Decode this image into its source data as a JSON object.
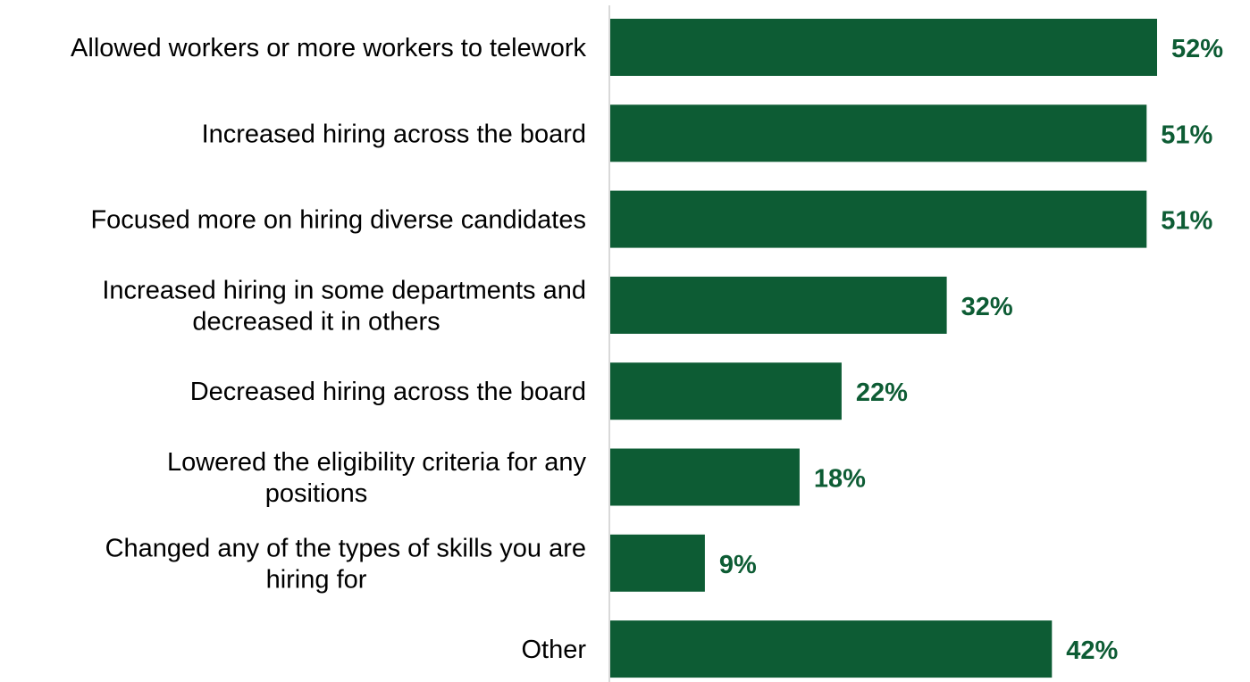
{
  "chart_data": {
    "type": "bar",
    "orientation": "horizontal",
    "title": "",
    "xlabel": "",
    "ylabel": "",
    "categories": [
      "Allowed workers or more workers to telework",
      "Increased hiring across the board",
      "Focused more on hiring diverse candidates",
      "Increased hiring in some departments and decreased it in others",
      "Decreased hiring across the board",
      "Lowered the eligibility criteria for any positions",
      "Changed any of the types of skills you are hiring for",
      "Other"
    ],
    "category_lines": [
      [
        "Allowed workers or more workers to telework"
      ],
      [
        "Increased hiring across the board"
      ],
      [
        "Focused more on hiring diverse candidates"
      ],
      [
        "Increased hiring in some departments and",
        "decreased it in others"
      ],
      [
        "Decreased hiring across the board"
      ],
      [
        "Lowered the eligibility criteria for any",
        "positions"
      ],
      [
        "Changed any of the types of skills you are",
        "hiring for"
      ],
      [
        "Other"
      ]
    ],
    "values": [
      52,
      51,
      51,
      32,
      22,
      18,
      9,
      42
    ],
    "value_labels": [
      "52%",
      "51%",
      "51%",
      "32%",
      "22%",
      "18%",
      "9%",
      "42%"
    ],
    "unit": "%",
    "grid": false,
    "legend": "none",
    "colors": {
      "bar": "#0d5c34",
      "value_label": "#0d5c34",
      "axis": "#d9d9d9",
      "category_label": "#000000"
    }
  }
}
